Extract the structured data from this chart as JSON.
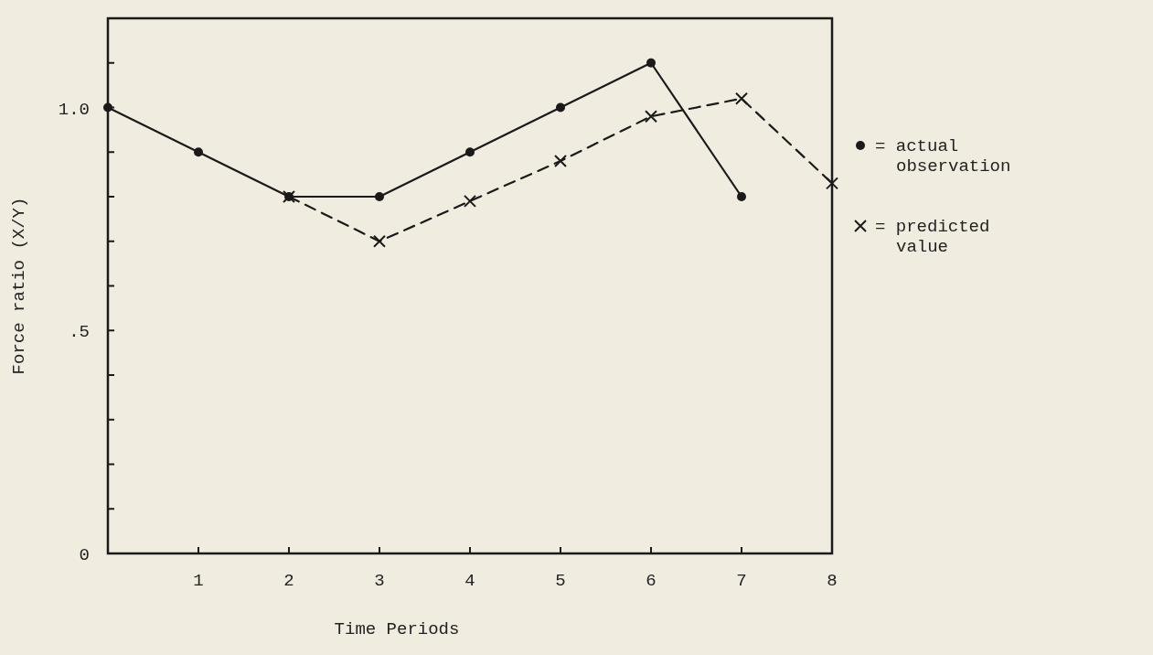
{
  "chart_data": {
    "type": "line",
    "xlabel": "Time Periods",
    "ylabel": "Force ratio (X/Y)",
    "x": [
      0,
      1,
      2,
      3,
      4,
      5,
      6,
      7,
      8
    ],
    "series": [
      {
        "name": "= actual observation",
        "color": "#1a1a1a",
        "marker": "circle",
        "line_style": "solid",
        "values": [
          1.0,
          0.9,
          0.8,
          0.8,
          0.9,
          1.0,
          1.1,
          0.8,
          null
        ]
      },
      {
        "name": "= predicted value",
        "color": "#1a1a1a",
        "marker": "cross",
        "line_style": "dashed",
        "values": [
          null,
          null,
          0.8,
          0.7,
          0.79,
          0.88,
          0.98,
          1.02,
          0.83
        ]
      }
    ],
    "xlim": [
      0,
      8
    ],
    "xticks": [
      1,
      2,
      3,
      4,
      5,
      6,
      7,
      8
    ],
    "ylim": [
      0,
      1.2
    ],
    "yticks": [
      {
        "value": 0,
        "label": "0"
      },
      {
        "value": 0.1,
        "label": null
      },
      {
        "value": 0.2,
        "label": null
      },
      {
        "value": 0.3,
        "label": null
      },
      {
        "value": 0.4,
        "label": null
      },
      {
        "value": 0.5,
        "label": ".5"
      },
      {
        "value": 0.6,
        "label": null
      },
      {
        "value": 0.7,
        "label": null
      },
      {
        "value": 0.8,
        "label": null
      },
      {
        "value": 0.9,
        "label": null
      },
      {
        "value": 1.0,
        "label": "1.0"
      },
      {
        "value": 1.1,
        "label": null
      }
    ],
    "grid": false,
    "legend": "right"
  }
}
